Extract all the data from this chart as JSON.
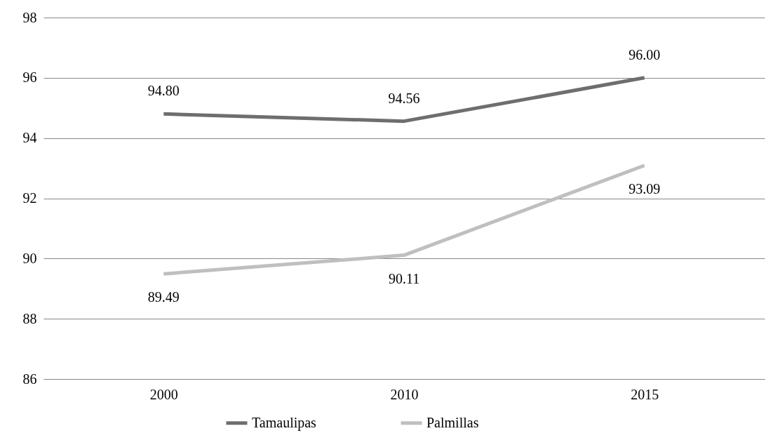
{
  "chart_data": {
    "type": "line",
    "categories": [
      "2000",
      "2010",
      "2015"
    ],
    "series": [
      {
        "name": "Tamaulipas",
        "color": "#6e6e6e",
        "values": [
          94.8,
          94.56,
          96.0
        ],
        "value_labels": [
          "94.80",
          "94.56",
          "96.00"
        ]
      },
      {
        "name": "Palmillas",
        "color": "#bfbfbf",
        "values": [
          89.49,
          90.11,
          93.09
        ],
        "value_labels": [
          "89.49",
          "90.11",
          "93.09"
        ]
      }
    ],
    "ylim": [
      86,
      98
    ],
    "yticks": [
      86,
      88,
      90,
      92,
      94,
      96,
      98
    ],
    "grid": "y",
    "legend": "bottom",
    "marker": "none",
    "line_style": "solid"
  }
}
